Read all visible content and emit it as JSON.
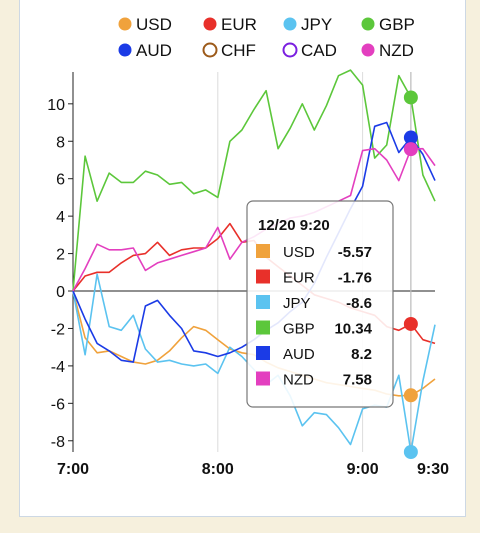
{
  "chart_data": {
    "type": "line",
    "x_ticks": [
      "7:00",
      "8:00",
      "9:00",
      "9:30"
    ],
    "y_ticks": [
      -8,
      -6,
      -4,
      -2,
      0,
      2,
      4,
      6,
      8,
      10
    ],
    "ylim": [
      -8.6,
      11.7
    ],
    "xlim_minutes": [
      0,
      150
    ],
    "grid_vertical_at": [
      "8:00",
      "9:00"
    ],
    "legend_position": "top",
    "series": [
      {
        "name": "USD",
        "color": "#f0a23c",
        "filled": true,
        "x": [
          0,
          5,
          10,
          15,
          20,
          25,
          30,
          35,
          40,
          45,
          50,
          55,
          60,
          65,
          70,
          75,
          80,
          85,
          90,
          95,
          100,
          105,
          110,
          115,
          120,
          125,
          130,
          135,
          140,
          145,
          150
        ],
        "y": [
          0,
          -2.5,
          -3.3,
          -3.2,
          -3.5,
          -3.8,
          -3.9,
          -3.7,
          -3.2,
          -2.5,
          -1.9,
          -2.1,
          -2.6,
          -3.1,
          -3.3,
          -3.4,
          -3.8,
          -4.1,
          -4.3,
          -4.5,
          -4.7,
          -4.9,
          -5.0,
          -5.1,
          -5.2,
          -5.3,
          -5.5,
          -5.6,
          -5.57,
          -5.2,
          -4.7
        ]
      },
      {
        "name": "EUR",
        "color": "#e8302a",
        "filled": true,
        "x": [
          0,
          5,
          10,
          15,
          20,
          25,
          30,
          35,
          40,
          45,
          50,
          55,
          60,
          65,
          70,
          75,
          80,
          85,
          90,
          95,
          100,
          105,
          110,
          115,
          120,
          125,
          130,
          135,
          140,
          145,
          150
        ],
        "y": [
          0,
          0.8,
          1.0,
          1.0,
          1.5,
          1.9,
          2.0,
          2.6,
          1.9,
          2.2,
          2.3,
          2.3,
          2.8,
          3.6,
          2.6,
          2.7,
          1.8,
          1.3,
          0.8,
          0.3,
          -0.2,
          -0.4,
          -0.6,
          -0.9,
          -1.1,
          -1.3,
          -1.9,
          -2.1,
          -1.76,
          -2.6,
          -2.8
        ]
      },
      {
        "name": "JPY",
        "color": "#5bc3f0",
        "filled": true,
        "x": [
          0,
          5,
          10,
          15,
          20,
          25,
          30,
          35,
          40,
          45,
          50,
          55,
          60,
          65,
          70,
          75,
          80,
          85,
          90,
          95,
          100,
          105,
          110,
          115,
          120,
          125,
          130,
          135,
          140,
          145,
          150
        ],
        "y": [
          0,
          -3.4,
          0.9,
          -1.9,
          -2.1,
          -1.3,
          -3.1,
          -3.8,
          -3.7,
          -3.9,
          -4.0,
          -3.9,
          -4.4,
          -3.0,
          -3.5,
          -4.2,
          -5.0,
          -4.5,
          -5.6,
          -7.2,
          -6.5,
          -6.6,
          -7.3,
          -8.2,
          -6.3,
          -6.1,
          -6.2,
          -4.5,
          -8.6,
          -4.8,
          -1.8
        ]
      },
      {
        "name": "GBP",
        "color": "#5cc73b",
        "filled": true,
        "x": [
          0,
          5,
          10,
          15,
          20,
          25,
          30,
          35,
          40,
          45,
          50,
          55,
          60,
          65,
          70,
          75,
          80,
          85,
          90,
          95,
          100,
          105,
          110,
          115,
          120,
          125,
          130,
          135,
          140,
          145,
          150
        ],
        "y": [
          0,
          7.2,
          4.8,
          6.3,
          5.8,
          5.8,
          6.4,
          6.2,
          5.7,
          5.8,
          5.2,
          5.4,
          5.0,
          8.0,
          8.6,
          9.7,
          10.7,
          7.6,
          8.7,
          10.0,
          8.6,
          9.9,
          11.5,
          11.8,
          11.0,
          7.1,
          7.8,
          11.5,
          10.34,
          6.2,
          4.8
        ]
      },
      {
        "name": "AUD",
        "color": "#1b3be6",
        "filled": true,
        "x": [
          0,
          5,
          10,
          15,
          20,
          25,
          30,
          35,
          40,
          45,
          50,
          55,
          60,
          65,
          70,
          75,
          80,
          85,
          90,
          95,
          100,
          105,
          110,
          115,
          120,
          125,
          130,
          135,
          140,
          145,
          150
        ],
        "y": [
          0,
          -1.5,
          -2.8,
          -3.2,
          -3.7,
          -3.8,
          -0.8,
          -0.5,
          -1.3,
          -2.0,
          -3.2,
          -3.3,
          -3.5,
          -3.3,
          -3.0,
          -2.6,
          -2.1,
          -1.7,
          -1.1,
          -0.6,
          0.4,
          1.8,
          3.1,
          4.4,
          5.6,
          8.8,
          9.0,
          7.4,
          8.2,
          7.3,
          5.9
        ]
      },
      {
        "name": "NZD",
        "color": "#e33fbf",
        "filled": true,
        "x": [
          0,
          5,
          10,
          15,
          20,
          25,
          30,
          35,
          40,
          45,
          50,
          55,
          60,
          65,
          70,
          75,
          80,
          85,
          90,
          95,
          100,
          105,
          110,
          115,
          120,
          125,
          130,
          135,
          140,
          145,
          150
        ],
        "y": [
          0,
          1.2,
          2.5,
          2.2,
          2.2,
          2.3,
          1.1,
          1.5,
          1.7,
          1.9,
          2.1,
          2.3,
          3.4,
          1.7,
          2.6,
          2.9,
          3.3,
          3.6,
          3.9,
          4.0,
          4.2,
          4.5,
          4.8,
          5.1,
          7.5,
          7.6,
          7.0,
          5.9,
          7.58,
          7.6,
          6.7
        ]
      },
      {
        "name": "CHF",
        "color": "#9c5a1a",
        "filled": false,
        "x": [],
        "y": []
      },
      {
        "name": "CAD",
        "color": "#7a1fe0",
        "filled": false,
        "x": [],
        "y": []
      }
    ],
    "legend": [
      {
        "name": "USD",
        "color": "#f0a23c",
        "filled": true
      },
      {
        "name": "EUR",
        "color": "#e8302a",
        "filled": true
      },
      {
        "name": "JPY",
        "color": "#5bc3f0",
        "filled": true
      },
      {
        "name": "GBP",
        "color": "#5cc73b",
        "filled": true
      },
      {
        "name": "AUD",
        "color": "#1b3be6",
        "filled": true
      },
      {
        "name": "CHF",
        "color": "#9c5a1a",
        "filled": false
      },
      {
        "name": "CAD",
        "color": "#7a1fe0",
        "filled": false
      },
      {
        "name": "NZD",
        "color": "#e33fbf",
        "filled": true
      }
    ],
    "cursor_minutes": 140,
    "tooltip": {
      "title": "12/20 9:20",
      "rows": [
        {
          "name": "USD",
          "value": "-5.57",
          "color": "#f0a23c"
        },
        {
          "name": "EUR",
          "value": "-1.76",
          "color": "#e8302a"
        },
        {
          "name": "JPY",
          "value": "-8.6",
          "color": "#5bc3f0"
        },
        {
          "name": "GBP",
          "value": "10.34",
          "color": "#5cc73b"
        },
        {
          "name": "AUD",
          "value": "8.2",
          "color": "#1b3be6"
        },
        {
          "name": "NZD",
          "value": "7.58",
          "color": "#e33fbf"
        }
      ]
    }
  }
}
